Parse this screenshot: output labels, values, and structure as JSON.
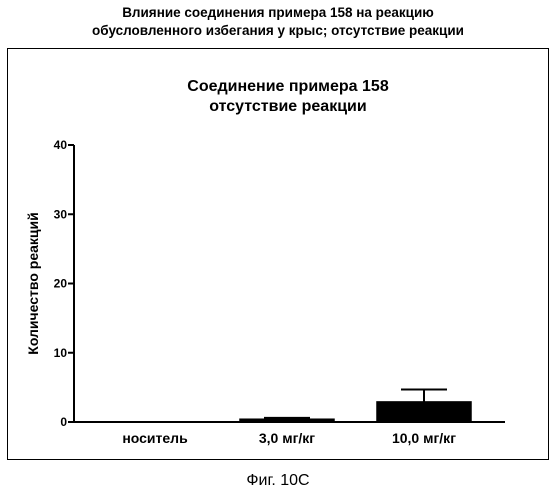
{
  "page_title": {
    "line1": "Влияние соединения примера 158 на реакцию",
    "line2": "обусловленного избегания у крыс; отсутствие реакции"
  },
  "caption": "Фиг. 10С",
  "chart_data": {
    "type": "bar",
    "title_lines": [
      "Соединение примера 158",
      "отсутствие реакции"
    ],
    "xlabel": "",
    "ylabel": "Количество реакций",
    "categories": [
      "носитель",
      "3,0 мг/кг",
      "10,0 мг/кг"
    ],
    "series": [
      {
        "values": [
          0,
          0.4,
          2.9
        ],
        "error": [
          0,
          0.2,
          1.8
        ]
      }
    ],
    "ylim": [
      0,
      40
    ],
    "yticks": [
      0,
      10,
      20,
      30,
      40
    ],
    "grid": false,
    "legend": "none",
    "bar_color": "#000000"
  }
}
